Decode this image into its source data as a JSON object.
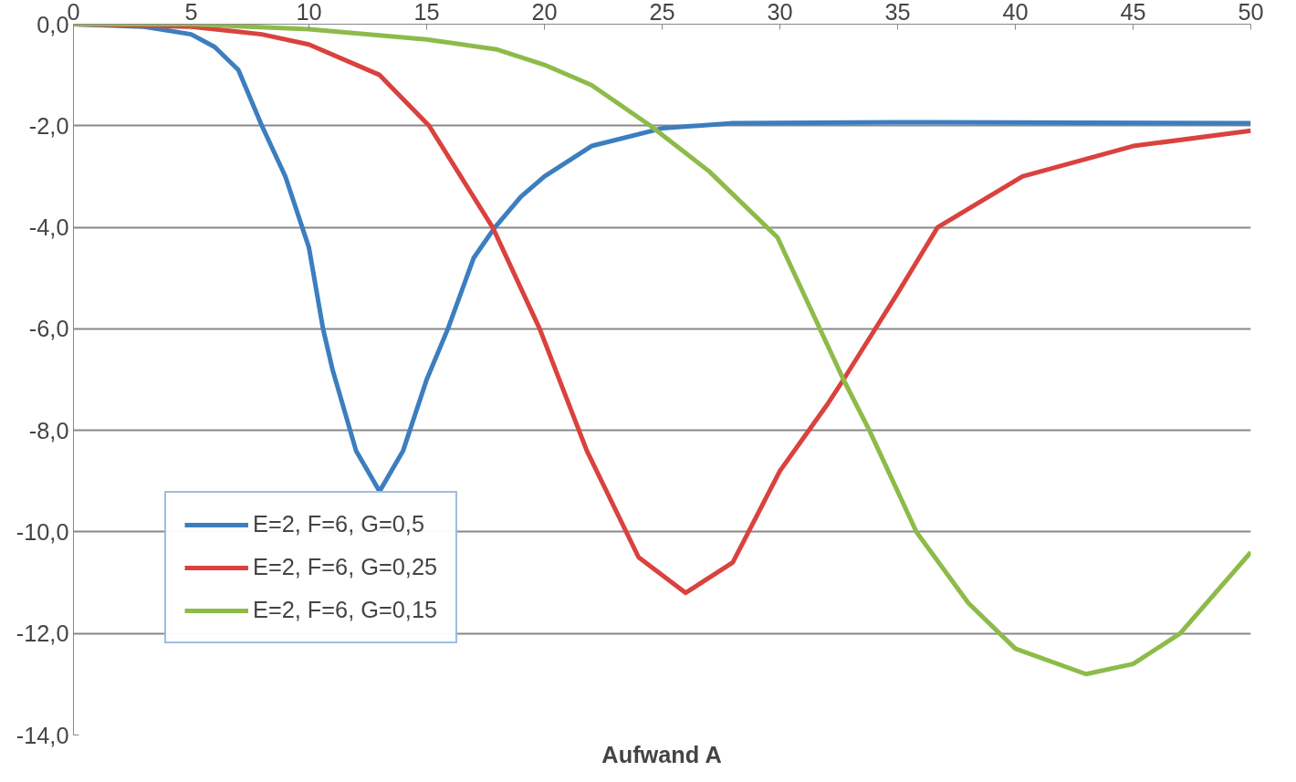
{
  "chart_data": {
    "type": "line",
    "xlabel": "Aufwand A",
    "xlim": [
      0,
      50
    ],
    "xticks": [
      0,
      5,
      10,
      15,
      20,
      25,
      30,
      35,
      40,
      45,
      50
    ],
    "ylim": [
      -14,
      0
    ],
    "yticks": [
      {
        "value": 0,
        "label": "0,0"
      },
      {
        "value": -2,
        "label": "-2,0"
      },
      {
        "value": -4,
        "label": "-4,0"
      },
      {
        "value": -6,
        "label": "-6,0"
      },
      {
        "value": -8,
        "label": "-8,0"
      },
      {
        "value": -10,
        "label": "-10,0"
      },
      {
        "value": -12,
        "label": "-12,0"
      },
      {
        "value": -14,
        "label": "-14,0"
      }
    ],
    "grid": "y",
    "legend": "bottom left",
    "marker": "none",
    "line_style": "solid",
    "series": [
      {
        "name": "E=2, F=6, G=0,5",
        "color": "#3c7ebf",
        "x": [
          0,
          3,
          5,
          6,
          7,
          8,
          9,
          10,
          10.6,
          11,
          12,
          13,
          14,
          15,
          15.9,
          17,
          17.9,
          19,
          20,
          22,
          25,
          28,
          35,
          50
        ],
        "values": [
          0,
          -0.05,
          -0.2,
          -0.45,
          -0.9,
          -2.0,
          -3.0,
          -4.4,
          -6.0,
          -6.8,
          -8.4,
          -9.2,
          -8.4,
          -7.0,
          -6.0,
          -4.6,
          -4.0,
          -3.4,
          -3.0,
          -2.4,
          -2.05,
          -1.95,
          -1.93,
          -1.95
        ]
      },
      {
        "name": "E=2, F=6, G=0,25",
        "color": "#d9423e",
        "x": [
          0,
          5,
          8,
          10,
          13,
          15.1,
          17.8,
          19.8,
          21.8,
          24,
          26,
          28,
          30,
          32,
          32.7,
          35,
          36.7,
          40.3,
          45,
          50
        ],
        "values": [
          0,
          -0.05,
          -0.2,
          -0.4,
          -1.0,
          -2.0,
          -4.0,
          -6.0,
          -8.4,
          -10.5,
          -11.2,
          -10.6,
          -8.8,
          -7.5,
          -7.0,
          -5.3,
          -4.0,
          -3.0,
          -2.4,
          -2.1
        ]
      },
      {
        "name": "E=2, F=6, G=0,15",
        "color": "#8dbb4a",
        "x": [
          0,
          5,
          10,
          15,
          18,
          20,
          22,
          24.5,
          27,
          29.9,
          32.7,
          33.8,
          35.8,
          38,
          40,
          43,
          45,
          47,
          50
        ],
        "values": [
          0,
          0,
          -0.1,
          -0.3,
          -0.5,
          -0.8,
          -1.2,
          -2.0,
          -2.9,
          -4.2,
          -7.0,
          -8.0,
          -10.0,
          -11.4,
          -12.3,
          -12.8,
          -12.6,
          -12.0,
          -10.4
        ]
      }
    ]
  }
}
